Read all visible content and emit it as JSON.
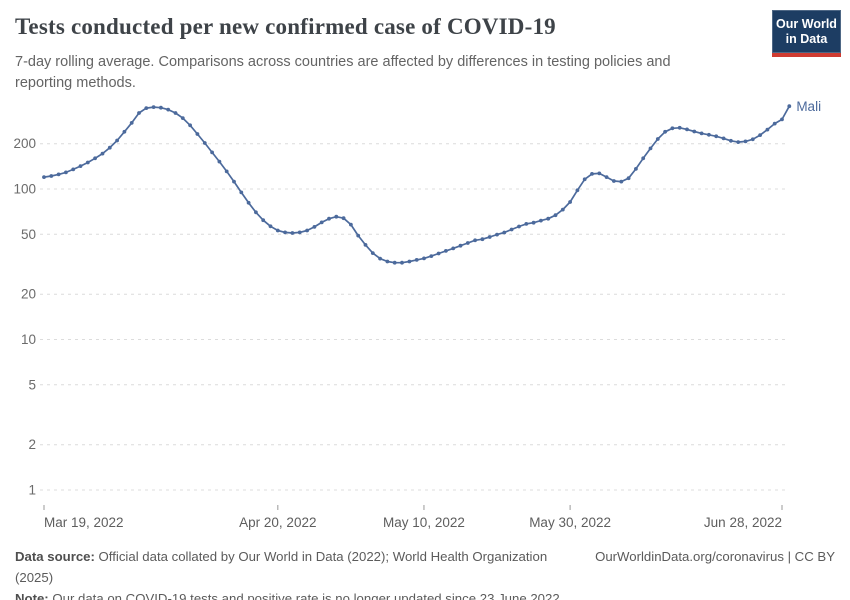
{
  "header": {
    "title": "Tests conducted per new confirmed case of COVID-19",
    "subtitle": "7-day rolling average. Comparisons across countries are affected by differences in testing policies and reporting methods."
  },
  "logo": {
    "line1": "Our World",
    "line2": "in Data",
    "bg_color": "#1d3d63",
    "stripe_color": "#cf3b31"
  },
  "chart_data": {
    "type": "line",
    "title": "Tests conducted per new confirmed case of COVID-19",
    "entity_label": "Mali",
    "line_color": "#4c6a9c",
    "grid_color": "#dcdcdc",
    "y_tick_color": "#6b6b6b",
    "x_tick_color": "#5e5e5e",
    "y_scale": "log",
    "ylim": [
      1,
      390
    ],
    "grid": "on",
    "legend_position": "end-of-line",
    "x_start_date": "Mar 19, 2022",
    "x_end_date": "Jun 28, 2022",
    "y_ticks": [
      1,
      2,
      5,
      10,
      20,
      50,
      100,
      200
    ],
    "x_ticks": [
      {
        "label": "Mar 19, 2022",
        "day": 0,
        "align": "start"
      },
      {
        "label": "Apr 20, 2022",
        "day": 32,
        "align": "middle"
      },
      {
        "label": "May 10, 2022",
        "day": 52,
        "align": "middle"
      },
      {
        "label": "May 30, 2022",
        "day": 72,
        "align": "middle"
      },
      {
        "label": "Jun 28, 2022",
        "day": 101,
        "align": "end"
      }
    ],
    "series": [
      {
        "name": "Mali",
        "daily_values_from_start": [
          120,
          122,
          125,
          129,
          135,
          142,
          150,
          160,
          172,
          188,
          210,
          240,
          275,
          320,
          345,
          350,
          347,
          337,
          320,
          296,
          265,
          232,
          202,
          175,
          152,
          131,
          112,
          95,
          81,
          70,
          62,
          56.5,
          53,
          51.5,
          51,
          51.5,
          53,
          56,
          60,
          63.5,
          65.5,
          64,
          58,
          49,
          42.5,
          37.5,
          34.5,
          33,
          32.4,
          32.4,
          33,
          33.8,
          34.6,
          35.8,
          37.3,
          38.8,
          40.3,
          42,
          43.8,
          45.6,
          46.4,
          48,
          49.8,
          51.4,
          53.8,
          56.3,
          58.6,
          59.7,
          61.7,
          63.5,
          67,
          73,
          82,
          98,
          116,
          126,
          127,
          120,
          113,
          112,
          118,
          136,
          160,
          186,
          215,
          240,
          253,
          255,
          249,
          241,
          234,
          229,
          224,
          217,
          209,
          205,
          207,
          214,
          228,
          248,
          272,
          290,
          355
        ]
      }
    ]
  },
  "footer": {
    "source_label": "Data source:",
    "source_text": " Official data collated by Our World in Data (2022); World Health Organization (2025)",
    "link_text": "OurWorldinData.org/coronavirus | CC BY",
    "note_label": "Note:",
    "note_text": " Our data on COVID-19 tests and positive rate is no longer updated since 23 June 2022."
  }
}
